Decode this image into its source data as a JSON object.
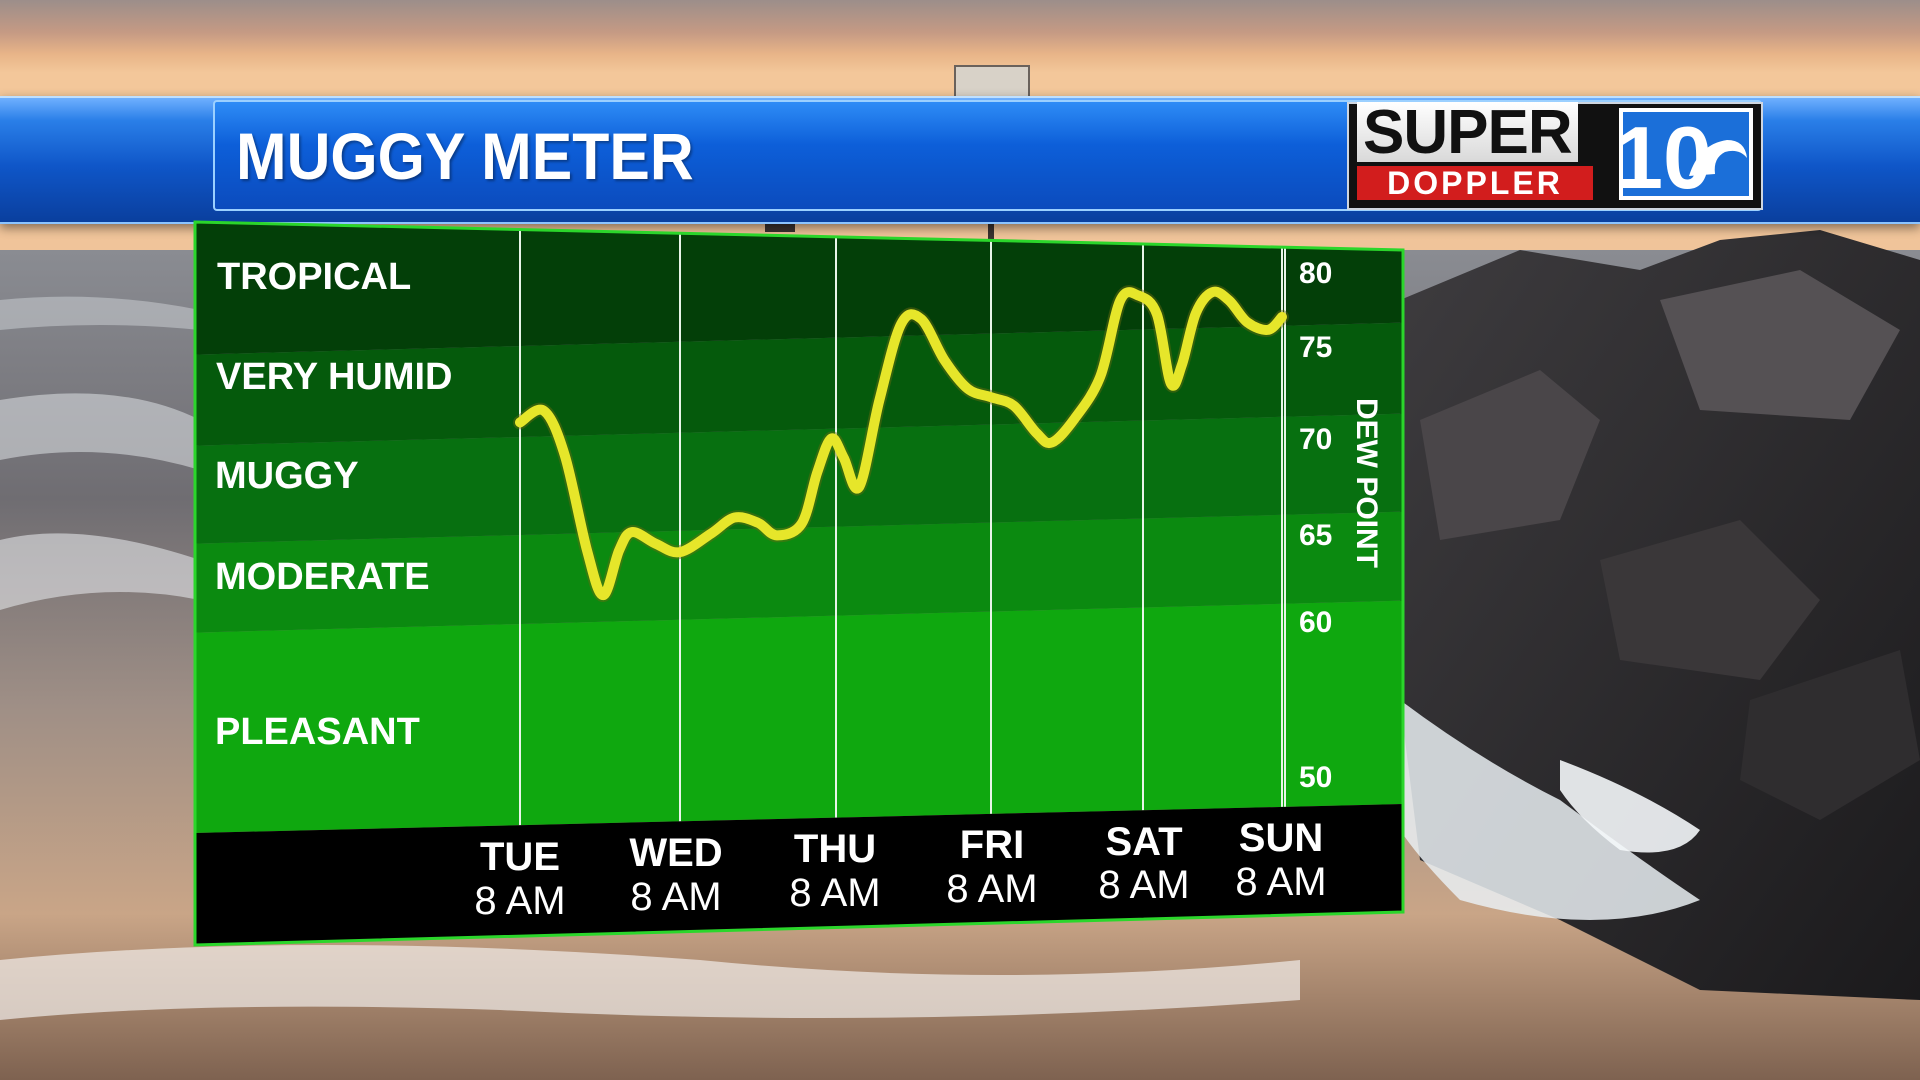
{
  "header": {
    "title": "MUGGY METER"
  },
  "logo": {
    "line1": "SUPER",
    "line2": "DOPPLER",
    "number": "10"
  },
  "colors": {
    "line": "#e6e62a",
    "pleasant": "#0fa80f",
    "moderate": "#0b8a10",
    "muggy": "#077010",
    "very_humid": "#055a0c",
    "tropical": "#033f08",
    "border": "#2bd62b",
    "title_bar": "#0d5fd9"
  },
  "chart_data": {
    "type": "line",
    "title": "MUGGY METER",
    "ylabel": "DEW POINT",
    "ylim": [
      50,
      80
    ],
    "yticks": [
      50,
      60,
      65,
      70,
      75,
      80
    ],
    "categories": [
      {
        "day": "TUE",
        "time": "8 AM"
      },
      {
        "day": "WED",
        "time": "8 AM"
      },
      {
        "day": "THU",
        "time": "8 AM"
      },
      {
        "day": "FRI",
        "time": "8 AM"
      },
      {
        "day": "SAT",
        "time": "8 AM"
      },
      {
        "day": "SUN",
        "time": "8 AM"
      }
    ],
    "bands": [
      {
        "label": "PLEASANT",
        "from": 50,
        "to": 60
      },
      {
        "label": "MODERATE",
        "from": 60,
        "to": 65
      },
      {
        "label": "MUGGY",
        "from": 65,
        "to": 70
      },
      {
        "label": "VERY HUMID",
        "from": 70,
        "to": 75
      },
      {
        "label": "TROPICAL",
        "from": 75,
        "to": 80
      }
    ],
    "series": [
      {
        "values": [
          [
            0.0,
            70.8
          ],
          [
            0.15,
            71.4
          ],
          [
            0.28,
            69.0
          ],
          [
            0.42,
            64.0
          ],
          [
            0.52,
            61.5
          ],
          [
            0.62,
            64.0
          ],
          [
            0.7,
            65.0
          ],
          [
            0.85,
            64.3
          ],
          [
            1.0,
            63.8
          ],
          [
            1.2,
            64.8
          ],
          [
            1.35,
            65.6
          ],
          [
            1.5,
            65.3
          ],
          [
            1.62,
            64.6
          ],
          [
            1.78,
            65.2
          ],
          [
            1.88,
            67.8
          ],
          [
            1.97,
            69.5
          ],
          [
            2.05,
            68.5
          ],
          [
            2.15,
            67.0
          ],
          [
            2.28,
            71.5
          ],
          [
            2.42,
            75.8
          ],
          [
            2.55,
            76.1
          ],
          [
            2.7,
            73.6
          ],
          [
            2.85,
            72.0
          ],
          [
            3.0,
            71.5
          ],
          [
            3.15,
            71.0
          ],
          [
            3.3,
            69.5
          ],
          [
            3.4,
            69.0
          ],
          [
            3.55,
            70.2
          ],
          [
            3.72,
            72.5
          ],
          [
            3.85,
            77.0
          ],
          [
            3.97,
            77.3
          ],
          [
            4.1,
            76.0
          ],
          [
            4.2,
            72.0
          ],
          [
            4.28,
            73.0
          ],
          [
            4.38,
            76.0
          ],
          [
            4.5,
            77.4
          ],
          [
            4.62,
            76.8
          ],
          [
            4.75,
            75.3
          ],
          [
            4.9,
            74.8
          ],
          [
            5.0,
            75.6
          ]
        ]
      }
    ]
  }
}
